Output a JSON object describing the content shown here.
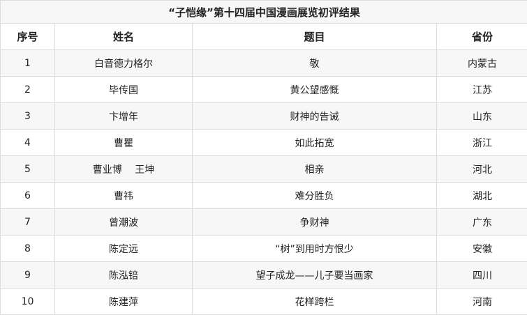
{
  "title": "“子恺缘”第十四届中国漫画展览初评结果",
  "headers": [
    "序号",
    "姓名",
    "题目",
    "省份"
  ],
  "rows": [
    [
      "1",
      "白音德力格尔",
      "敬",
      "内蒙古"
    ],
    [
      "2",
      "毕传国",
      "黄公望感慨",
      "江苏"
    ],
    [
      "3",
      "卞增年",
      "财神的告诫",
      "山东"
    ],
    [
      "4",
      "曹瞿",
      "如此拓宽",
      "浙江"
    ],
    [
      "5",
      "曹业博　 王坤",
      "相亲",
      "河北"
    ],
    [
      "6",
      "曹祎",
      "难分胜负",
      "湖北"
    ],
    [
      "7",
      "曾潮波",
      "争财神",
      "广东"
    ],
    [
      "8",
      "陈定远",
      "“树”到用时方恨少",
      "安徽"
    ],
    [
      "9",
      "陈泓锫",
      "望子成龙——儿子要当画家",
      "四川"
    ],
    [
      "10",
      "陈建萍",
      "花样跨栏",
      "河南"
    ]
  ]
}
